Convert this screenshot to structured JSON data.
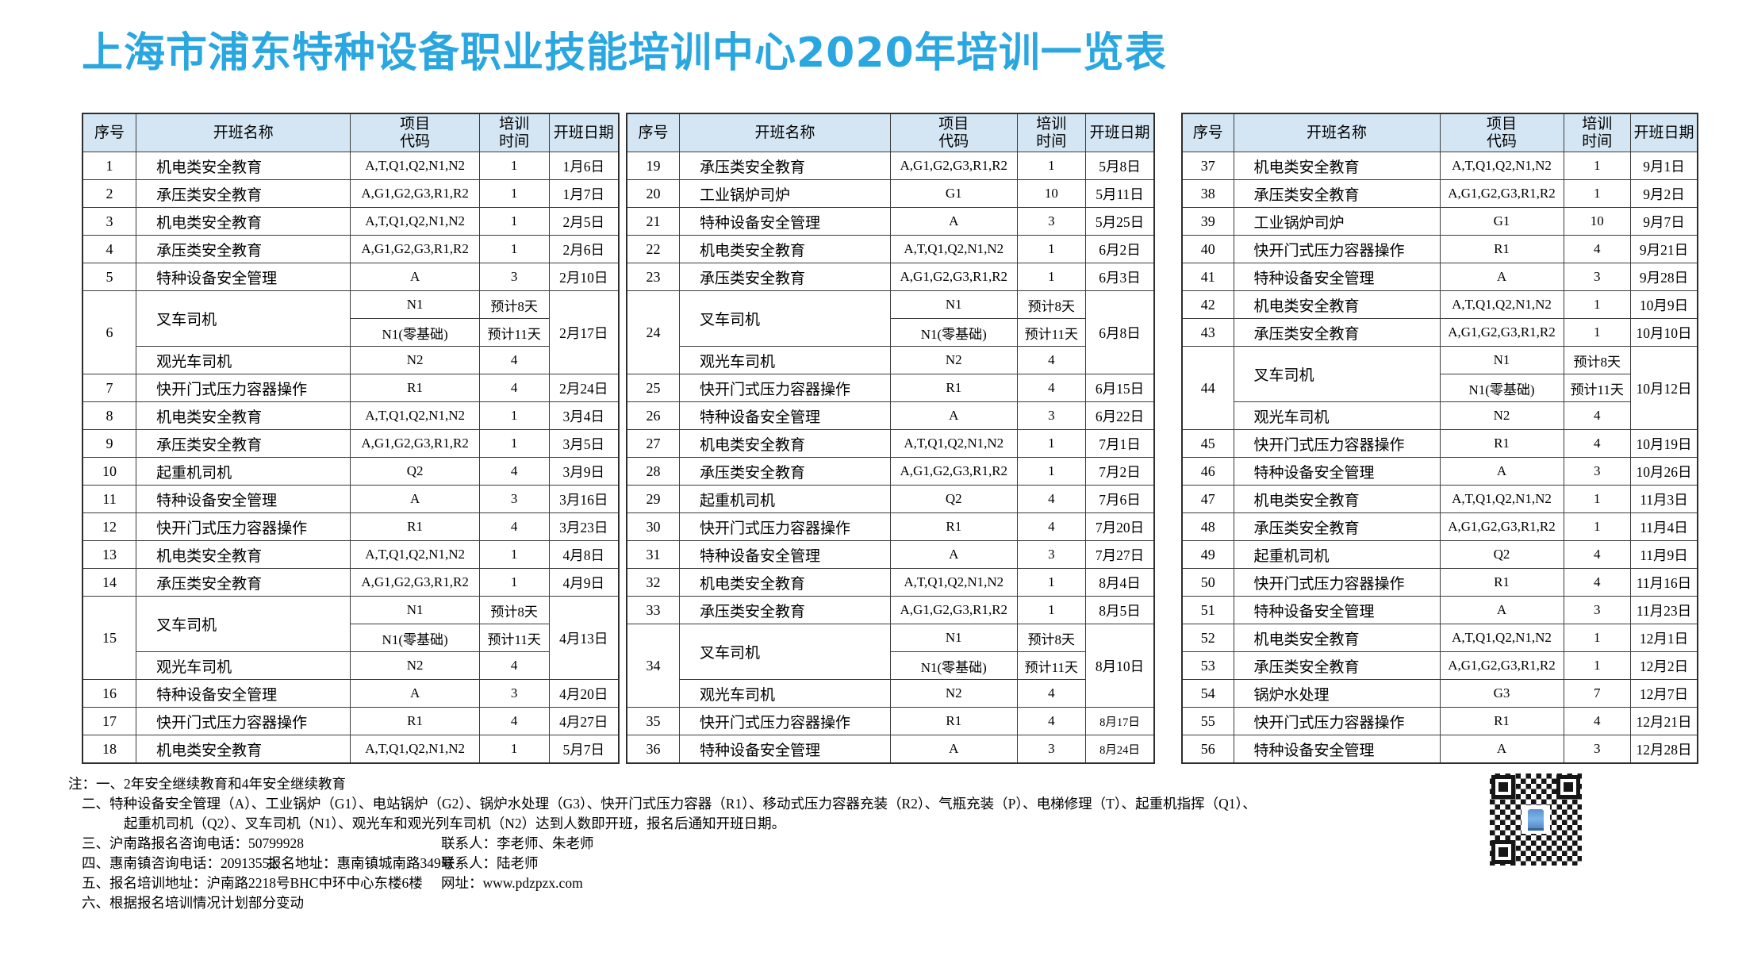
{
  "title": "上海市浦东特种设备职业技能培训中心2020年培训一览表",
  "colors": {
    "title_accent": "#2aa7e0",
    "header_bg": "#d4e6f4"
  },
  "columns": [
    "序号",
    "开班名称",
    "项目\n代码",
    "培训\n时间",
    "开班日期"
  ],
  "tables": [
    [
      {
        "no": "1",
        "name": "机电类安全教育",
        "code": "A,T,Q1,Q2,N1,N2",
        "time": "1",
        "date": "1月6日"
      },
      {
        "no": "2",
        "name": "承压类安全教育",
        "code": "A,G1,G2,G3,R1,R2",
        "time": "1",
        "date": "1月7日"
      },
      {
        "no": "3",
        "name": "机电类安全教育",
        "code": "A,T,Q1,Q2,N1,N2",
        "time": "1",
        "date": "2月5日"
      },
      {
        "no": "4",
        "name": "承压类安全教育",
        "code": "A,G1,G2,G3,R1,R2",
        "time": "1",
        "date": "2月6日"
      },
      {
        "no": "5",
        "name": "特种设备安全管理",
        "code": "A",
        "time": "3",
        "date": "2月10日"
      },
      {
        "no": "6",
        "date": "2月17日",
        "names": [
          "叉车司机",
          "观光车司机"
        ],
        "subs": [
          [
            "N1",
            "预计8天"
          ],
          [
            "N1(零基础)",
            "预计11天"
          ],
          [
            "N2",
            "4"
          ]
        ]
      },
      {
        "no": "7",
        "name": "快开门式压力容器操作",
        "code": "R1",
        "time": "4",
        "date": "2月24日"
      },
      {
        "no": "8",
        "name": "机电类安全教育",
        "code": "A,T,Q1,Q2,N1,N2",
        "time": "1",
        "date": "3月4日"
      },
      {
        "no": "9",
        "name": "承压类安全教育",
        "code": "A,G1,G2,G3,R1,R2",
        "time": "1",
        "date": "3月5日"
      },
      {
        "no": "10",
        "name": "起重机司机",
        "code": "Q2",
        "time": "4",
        "date": "3月9日"
      },
      {
        "no": "11",
        "name": "特种设备安全管理",
        "code": "A",
        "time": "3",
        "date": "3月16日"
      },
      {
        "no": "12",
        "name": "快开门式压力容器操作",
        "code": "R1",
        "time": "4",
        "date": "3月23日"
      },
      {
        "no": "13",
        "name": "机电类安全教育",
        "code": "A,T,Q1,Q2,N1,N2",
        "time": "1",
        "date": "4月8日"
      },
      {
        "no": "14",
        "name": "承压类安全教育",
        "code": "A,G1,G2,G3,R1,R2",
        "time": "1",
        "date": "4月9日"
      },
      {
        "no": "15",
        "date": "4月13日",
        "names": [
          "叉车司机",
          "观光车司机"
        ],
        "subs": [
          [
            "N1",
            "预计8天"
          ],
          [
            "N1(零基础)",
            "预计11天"
          ],
          [
            "N2",
            "4"
          ]
        ]
      },
      {
        "no": "16",
        "name": "特种设备安全管理",
        "code": "A",
        "time": "3",
        "date": "4月20日"
      },
      {
        "no": "17",
        "name": "快开门式压力容器操作",
        "code": "R1",
        "time": "4",
        "date": "4月27日"
      },
      {
        "no": "18",
        "name": "机电类安全教育",
        "code": "A,T,Q1,Q2,N1,N2",
        "time": "1",
        "date": "5月7日"
      }
    ],
    [
      {
        "no": "19",
        "name": "承压类安全教育",
        "code": "A,G1,G2,G3,R1,R2",
        "time": "1",
        "date": "5月8日"
      },
      {
        "no": "20",
        "name": "工业锅炉司炉",
        "code": "G1",
        "time": "10",
        "date": "5月11日"
      },
      {
        "no": "21",
        "name": "特种设备安全管理",
        "code": "A",
        "time": "3",
        "date": "5月25日"
      },
      {
        "no": "22",
        "name": "机电类安全教育",
        "code": "A,T,Q1,Q2,N1,N2",
        "time": "1",
        "date": "6月2日"
      },
      {
        "no": "23",
        "name": "承压类安全教育",
        "code": "A,G1,G2,G3,R1,R2",
        "time": "1",
        "date": "6月3日"
      },
      {
        "no": "24",
        "date": "6月8日",
        "names": [
          "叉车司机",
          "观光车司机"
        ],
        "subs": [
          [
            "N1",
            "预计8天"
          ],
          [
            "N1(零基础)",
            "预计11天"
          ],
          [
            "N2",
            "4"
          ]
        ]
      },
      {
        "no": "25",
        "name": "快开门式压力容器操作",
        "code": "R1",
        "time": "4",
        "date": "6月15日"
      },
      {
        "no": "26",
        "name": "特种设备安全管理",
        "code": "A",
        "time": "3",
        "date": "6月22日"
      },
      {
        "no": "27",
        "name": "机电类安全教育",
        "code": "A,T,Q1,Q2,N1,N2",
        "time": "1",
        "date": "7月1日"
      },
      {
        "no": "28",
        "name": "承压类安全教育",
        "code": "A,G1,G2,G3,R1,R2",
        "time": "1",
        "date": "7月2日"
      },
      {
        "no": "29",
        "name": "起重机司机",
        "code": "Q2",
        "time": "4",
        "date": "7月6日"
      },
      {
        "no": "30",
        "name": "快开门式压力容器操作",
        "code": "R1",
        "time": "4",
        "date": "7月20日"
      },
      {
        "no": "31",
        "name": "特种设备安全管理",
        "code": "A",
        "time": "3",
        "date": "7月27日"
      },
      {
        "no": "32",
        "name": "机电类安全教育",
        "code": "A,T,Q1,Q2,N1,N2",
        "time": "1",
        "date": "8月4日"
      },
      {
        "no": "33",
        "name": "承压类安全教育",
        "code": "A,G1,G2,G3,R1,R2",
        "time": "1",
        "date": "8月5日"
      },
      {
        "no": "34",
        "date": "8月10日",
        "names": [
          "叉车司机",
          "观光车司机"
        ],
        "subs": [
          [
            "N1",
            "预计8天"
          ],
          [
            "N1(零基础)",
            "预计11天"
          ],
          [
            "N2",
            "4"
          ]
        ]
      },
      {
        "no": "35",
        "name": "快开门式压力容器操作",
        "code": "R1",
        "time": "4",
        "date": "8月17日",
        "sm": true
      },
      {
        "no": "36",
        "name": "特种设备安全管理",
        "code": "A",
        "time": "3",
        "date": "8月24日",
        "sm": true
      }
    ],
    [
      {
        "no": "37",
        "name": "机电类安全教育",
        "code": "A,T,Q1,Q2,N1,N2",
        "time": "1",
        "date": "9月1日"
      },
      {
        "no": "38",
        "name": "承压类安全教育",
        "code": "A,G1,G2,G3,R1,R2",
        "time": "1",
        "date": "9月2日"
      },
      {
        "no": "39",
        "name": "工业锅炉司炉",
        "code": "G1",
        "time": "10",
        "date": "9月7日"
      },
      {
        "no": "40",
        "name": "快开门式压力容器操作",
        "code": "R1",
        "time": "4",
        "date": "9月21日"
      },
      {
        "no": "41",
        "name": "特种设备安全管理",
        "code": "A",
        "time": "3",
        "date": "9月28日"
      },
      {
        "no": "42",
        "name": "机电类安全教育",
        "code": "A,T,Q1,Q2,N1,N2",
        "time": "1",
        "date": "10月9日"
      },
      {
        "no": "43",
        "name": "承压类安全教育",
        "code": "A,G1,G2,G3,R1,R2",
        "time": "1",
        "date": "10月10日"
      },
      {
        "no": "44",
        "date": "10月12日",
        "names": [
          "叉车司机",
          "观光车司机"
        ],
        "subs": [
          [
            "N1",
            "预计8天"
          ],
          [
            "N1(零基础)",
            "预计11天"
          ],
          [
            "N2",
            "4"
          ]
        ]
      },
      {
        "no": "45",
        "name": "快开门式压力容器操作",
        "code": "R1",
        "time": "4",
        "date": "10月19日"
      },
      {
        "no": "46",
        "name": "特种设备安全管理",
        "code": "A",
        "time": "3",
        "date": "10月26日"
      },
      {
        "no": "47",
        "name": "机电类安全教育",
        "code": "A,T,Q1,Q2,N1,N2",
        "time": "1",
        "date": "11月3日"
      },
      {
        "no": "48",
        "name": "承压类安全教育",
        "code": "A,G1,G2,G3,R1,R2",
        "time": "1",
        "date": "11月4日"
      },
      {
        "no": "49",
        "name": "起重机司机",
        "code": "Q2",
        "time": "4",
        "date": "11月9日"
      },
      {
        "no": "50",
        "name": "快开门式压力容器操作",
        "code": "R1",
        "time": "4",
        "date": "11月16日"
      },
      {
        "no": "51",
        "name": "特种设备安全管理",
        "code": "A",
        "time": "3",
        "date": "11月23日"
      },
      {
        "no": "52",
        "name": "机电类安全教育",
        "code": "A,T,Q1,Q2,N1,N2",
        "time": "1",
        "date": "12月1日"
      },
      {
        "no": "53",
        "name": "承压类安全教育",
        "code": "A,G1,G2,G3,R1,R2",
        "time": "1",
        "date": "12月2日"
      },
      {
        "no": "54",
        "name": "锅炉水处理",
        "code": "G3",
        "time": "7",
        "date": "12月7日"
      },
      {
        "no": "55",
        "name": "快开门式压力容器操作",
        "code": "R1",
        "time": "4",
        "date": "12月21日"
      },
      {
        "no": "56",
        "name": "特种设备安全管理",
        "code": "A",
        "time": "3",
        "date": "12月28日"
      }
    ]
  ],
  "notes": {
    "line1": "注：一、2年安全继续教育和4年安全继续教育",
    "line2a": "二、特种设备安全管理（A）、工业锅炉（G1）、电站锅炉（G2）、锅炉水处理（G3）、快开门式压力容器（R1）、移动式压力容器充装（R2）、气瓶充装（P）、电梯修理（T）、起重机指挥（Q1）、",
    "line2b": "起重机司机（Q2）、叉车司机（N1）、观光车和观光列车司机（N2）达到人数即开班，报名后通知开班日期。",
    "line3l": "三、沪南路报名咨询电话：50799928",
    "line3r": "联系人：李老师、朱老师",
    "line4l": "四、惠南镇咨询电话：20913552",
    "line4m": "报名地址：惠南镇城南路349号",
    "line4r": "联系人：陆老师",
    "line5l": "五、报名培训地址：沪南路2218号BHC中环中心东楼6楼",
    "line5r": "网址：www.pdzpzx.com",
    "line6": "六、根据报名培训情况计划部分变动"
  }
}
